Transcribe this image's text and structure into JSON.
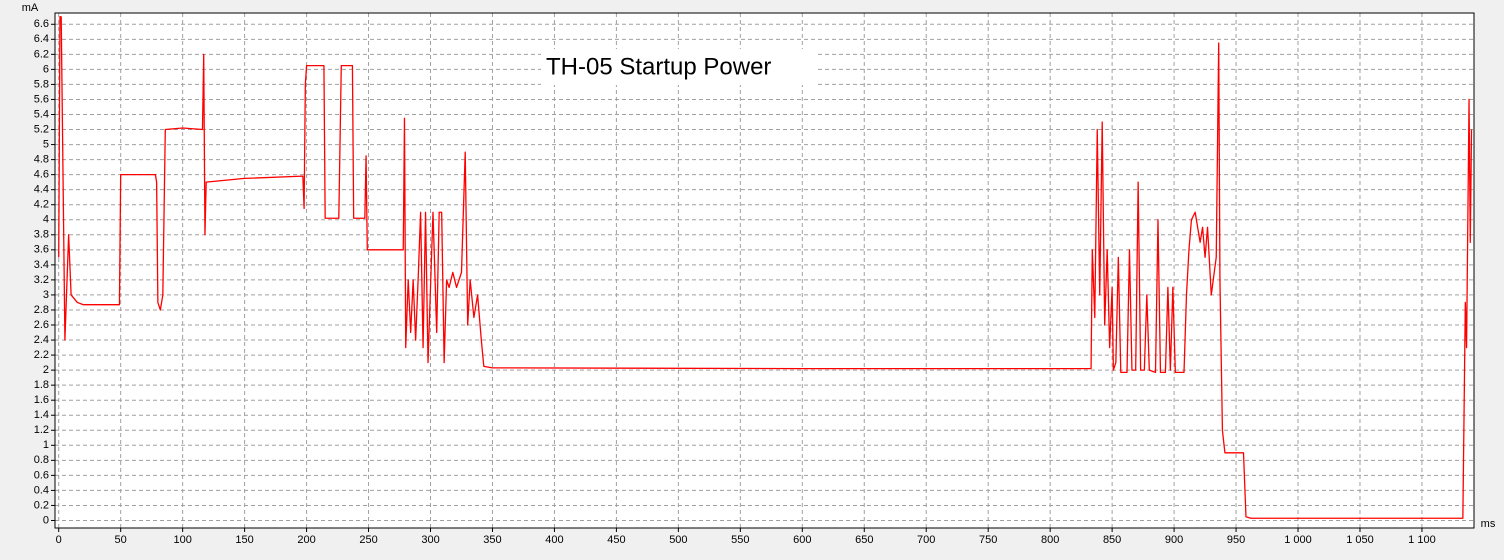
{
  "chart_data": {
    "type": "line",
    "annotation": "TH-05 Startup Power",
    "ylabel": "mA",
    "xlabel": "ms",
    "color": "#ff0000",
    "grid": true,
    "xlim": [
      -3,
      1142
    ],
    "ylim": [
      -0.1,
      6.75
    ],
    "yticks": [
      0,
      0.2,
      0.4,
      0.6,
      0.8,
      1,
      1.2,
      1.4,
      1.6,
      1.8,
      2,
      2.2,
      2.4,
      2.6,
      2.8,
      3,
      3.2,
      3.4,
      3.6,
      3.8,
      4,
      4.2,
      4.4,
      4.6,
      4.8,
      5,
      5.2,
      5.4,
      5.6,
      5.8,
      6,
      6.2,
      6.4,
      6.6
    ],
    "xticks": [
      0,
      50,
      100,
      150,
      200,
      250,
      300,
      350,
      400,
      450,
      500,
      550,
      600,
      650,
      700,
      750,
      800,
      850,
      900,
      950,
      {
        "value": 1000,
        "label": "1 000"
      },
      {
        "value": 1050,
        "label": "1 050"
      },
      {
        "value": 1100,
        "label": "1 100"
      }
    ],
    "x": [
      0,
      1,
      2,
      5,
      8,
      10,
      15,
      20,
      48,
      49,
      50,
      78,
      79,
      80,
      82,
      84,
      86,
      100,
      116,
      117,
      118,
      119,
      150,
      197,
      198,
      199,
      200,
      214,
      215,
      226,
      228,
      237,
      238,
      247,
      248,
      249,
      250,
      278,
      279,
      280,
      282,
      284,
      286,
      288,
      290,
      292,
      294,
      296,
      298,
      302,
      305,
      307,
      309,
      311,
      313,
      315,
      318,
      321,
      325,
      328,
      330,
      332,
      335,
      338,
      341,
      343,
      350,
      600,
      833,
      834,
      836,
      838,
      840,
      842,
      844,
      846,
      848,
      850,
      851,
      853,
      855,
      857,
      862,
      864,
      866,
      869,
      871,
      873,
      876,
      878,
      880,
      885,
      887,
      889,
      893,
      895,
      897,
      899,
      901,
      908,
      910,
      912,
      914,
      917,
      921,
      923,
      925,
      927,
      930,
      934,
      936,
      937,
      939,
      941,
      956,
      958,
      962,
      1133,
      1135,
      1136,
      1138,
      1139,
      1140
    ],
    "values": [
      3.5,
      6.7,
      6.7,
      2.4,
      3.8,
      3.0,
      2.9,
      2.87,
      2.87,
      2.87,
      4.6,
      4.6,
      4.5,
      2.9,
      2.8,
      3.0,
      5.2,
      5.22,
      5.2,
      6.2,
      3.8,
      4.5,
      4.55,
      4.58,
      4.15,
      5.8,
      6.05,
      6.05,
      4.02,
      4.02,
      6.05,
      6.05,
      4.02,
      4.02,
      4.85,
      3.6,
      3.6,
      3.6,
      5.35,
      2.3,
      3.2,
      2.5,
      3.2,
      2.4,
      3.2,
      4.1,
      2.3,
      4.1,
      2.1,
      4.1,
      2.5,
      4.1,
      4.1,
      2.1,
      3.2,
      3.1,
      3.3,
      3.1,
      3.3,
      4.9,
      2.6,
      3.2,
      2.7,
      3.0,
      2.4,
      2.05,
      2.03,
      2.02,
      2.02,
      3.6,
      2.7,
      5.2,
      3.0,
      5.3,
      2.6,
      3.6,
      2.3,
      3.1,
      2.0,
      2.1,
      3.5,
      1.97,
      1.97,
      3.6,
      2.0,
      2.0,
      4.5,
      2.0,
      2.0,
      3.0,
      2.0,
      1.97,
      4.0,
      1.97,
      1.97,
      3.1,
      2.0,
      3.1,
      1.97,
      1.97,
      3.0,
      3.6,
      4.0,
      4.1,
      3.7,
      3.9,
      3.5,
      3.9,
      3.0,
      3.5,
      6.35,
      3.2,
      1.2,
      0.9,
      0.9,
      0.05,
      0.03,
      0.03,
      2.9,
      2.3,
      5.6,
      3.7,
      5.2
    ]
  }
}
